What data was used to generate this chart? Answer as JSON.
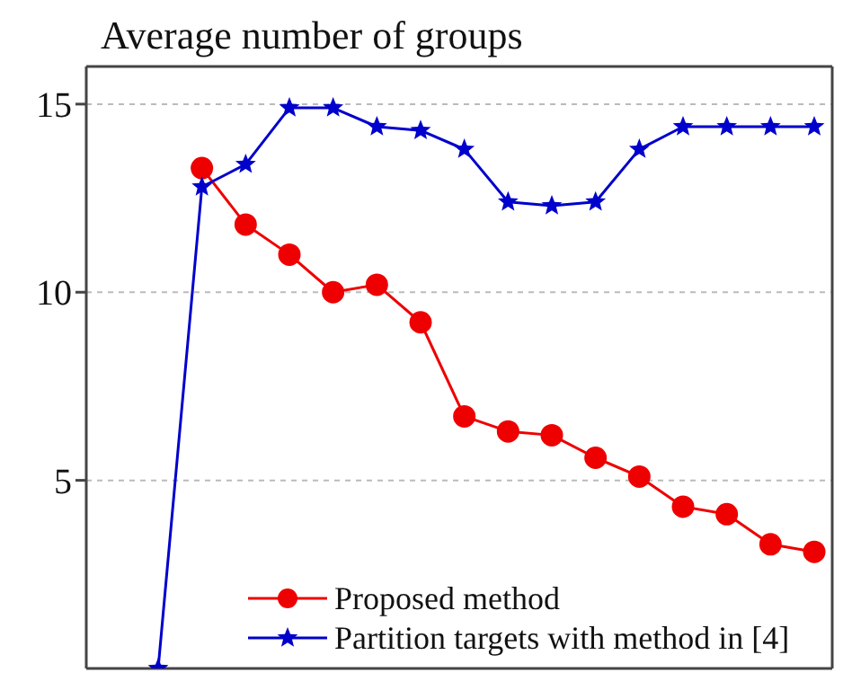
{
  "chart_data": {
    "type": "line",
    "title": "Average number of groups",
    "categories": [
      null,
      null,
      null,
      null,
      null,
      null,
      null,
      null,
      null,
      null,
      null,
      null,
      null,
      null,
      null,
      null
    ],
    "series": [
      {
        "name": "Proposed method",
        "color": "#ee0000",
        "marker": "circle",
        "values": [
          null,
          13.3,
          11.8,
          11.0,
          10.0,
          10.2,
          9.2,
          6.7,
          6.3,
          6.2,
          5.6,
          5.1,
          4.3,
          4.1,
          3.3,
          3.1
        ]
      },
      {
        "name": "Partition targets with method in [4]",
        "color": "#0000cc",
        "marker": "star",
        "values": [
          0,
          12.8,
          13.4,
          14.9,
          14.9,
          14.4,
          14.3,
          13.8,
          12.4,
          12.3,
          12.4,
          13.8,
          14.4,
          14.4,
          14.4,
          14.4
        ]
      }
    ],
    "ylim": [
      0,
      16
    ],
    "yticks": [
      5,
      10,
      15
    ],
    "grid": true,
    "legend": "bottom",
    "tick_labels": "y",
    "line_style": "solid"
  }
}
